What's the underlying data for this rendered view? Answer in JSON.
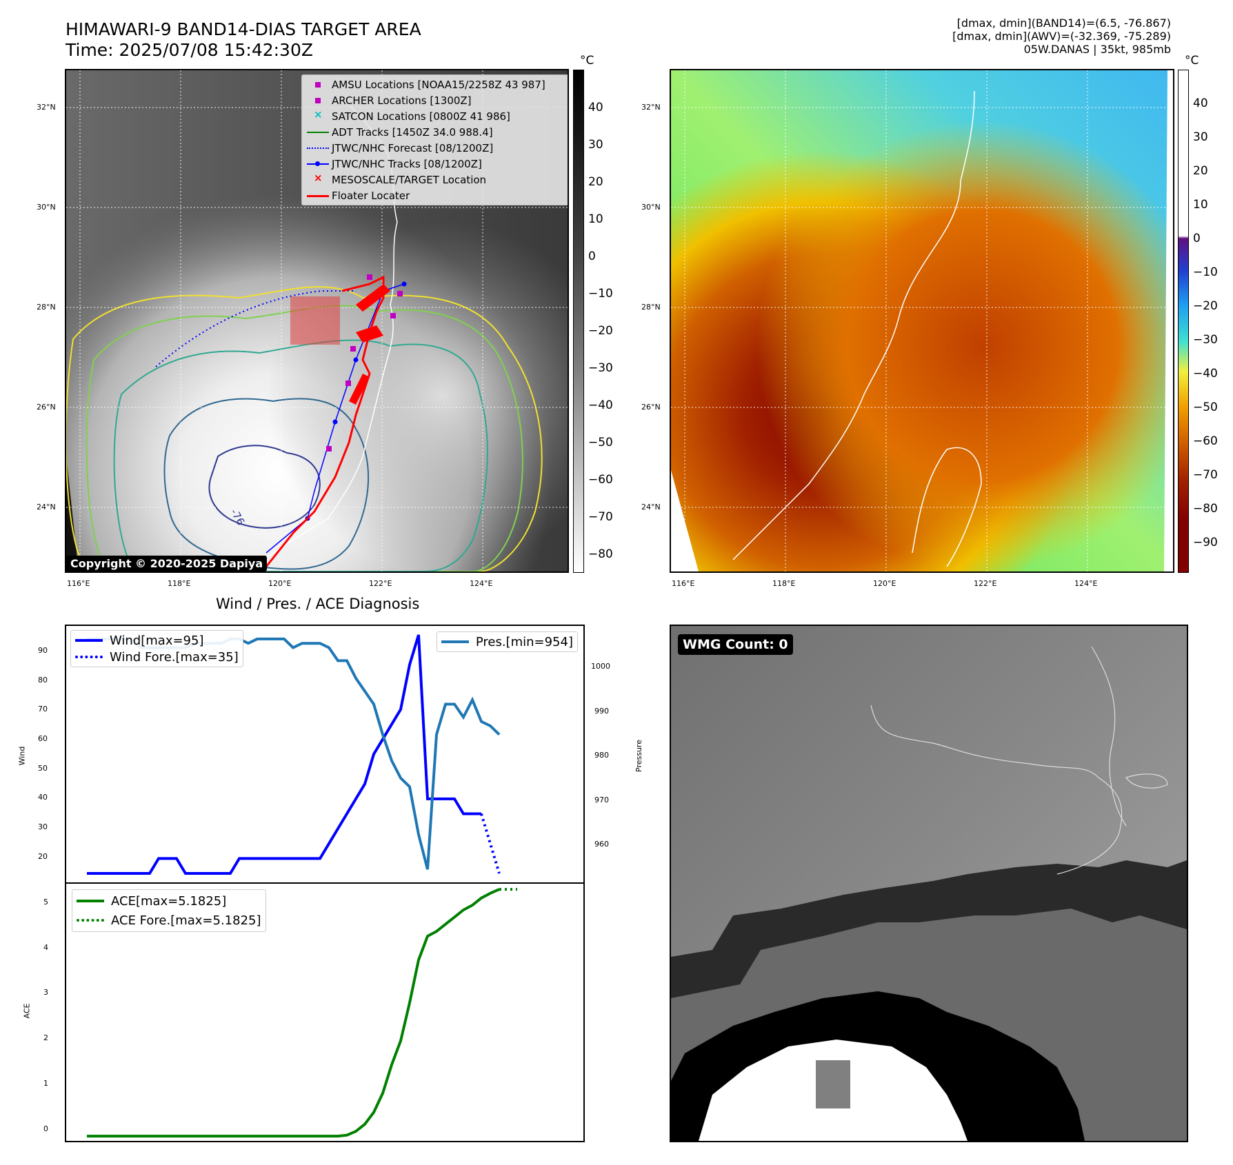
{
  "header": {
    "title_line1": "HIMAWARI-9 BAND14-DIAS TARGET AREA",
    "title_line2": "Time: 2025/07/08 15:42:30Z",
    "info_line1": "[dmax, dmin](BAND14)=(6.5, -76.867)",
    "info_line2": "[dmax, dmin](AWV)=(-32.369, -75.289)",
    "info_line3": "05W.DANAS | 35kt, 985mb"
  },
  "map": {
    "lat_labels": [
      "32°N",
      "30°N",
      "28°N",
      "26°N",
      "24°N"
    ],
    "lon_labels": [
      "116°E",
      "118°E",
      "120°E",
      "122°E",
      "124°E"
    ],
    "contour_label": "-76",
    "copyright": "Copyright © 2020-2025 Dapiya"
  },
  "colorbar_left": {
    "unit": "°C",
    "ticks": [
      "40",
      "30",
      "20",
      "10",
      "0",
      "−10",
      "−20",
      "−30",
      "−40",
      "−50",
      "−60",
      "−70",
      "−80"
    ]
  },
  "colorbar_right": {
    "unit": "°C",
    "ticks": [
      "40",
      "30",
      "20",
      "10",
      "0",
      "−10",
      "−20",
      "−30",
      "−40",
      "−50",
      "−60",
      "−70",
      "−80",
      "−90"
    ]
  },
  "legend": {
    "items": [
      {
        "label": "AMSU Locations [NOAA15/2258Z 43 987]",
        "symbol": "magenta-square",
        "color": "#c000c0"
      },
      {
        "label": "ARCHER Locations [1300Z]",
        "symbol": "magenta-square",
        "color": "#c000c0"
      },
      {
        "label": "SATCON Locations [0800Z 41 986]",
        "symbol": "cyan-x",
        "color": "#00c0c0"
      },
      {
        "label": "ADT Tracks [1450Z 34.0 988.4]",
        "symbol": "green-line",
        "color": "#008000"
      },
      {
        "label": "JTWC/NHC Forecast [08/1200Z]",
        "symbol": "blue-dotted",
        "color": "#0000ff"
      },
      {
        "label": "JTWC/NHC Tracks [08/1200Z]",
        "symbol": "blue-line-dot",
        "color": "#0000ff"
      },
      {
        "label": "MESOSCALE/TARGET Location",
        "symbol": "red-x",
        "color": "#ff0000"
      },
      {
        "label": "Floater Locater",
        "symbol": "red-line",
        "color": "#ff0000"
      }
    ]
  },
  "diagnosis": {
    "title": "Wind / Pres. / ACE Diagnosis",
    "wind_ylabel": "Wind",
    "pres_ylabel": "Pressure",
    "ace_ylabel": "ACE",
    "wind_legend": "Wind[max=95]",
    "wind_fore_legend": "Wind Fore.[max=35]",
    "pres_legend": "Pres.[min=954]",
    "ace_legend": "ACE[max=5.1825]",
    "ace_fore_legend": "ACE Fore.[max=5.1825]",
    "wind_ticks": [
      "90",
      "80",
      "70",
      "60",
      "50",
      "40",
      "30",
      "20"
    ],
    "pres_ticks": [
      "1000",
      "990",
      "980",
      "970",
      "960"
    ],
    "ace_ticks": [
      "5",
      "4",
      "3",
      "2",
      "1",
      "0"
    ]
  },
  "chart_data": [
    {
      "type": "line",
      "series": [
        {
          "name": "Wind[max=95]",
          "values": [
            15,
            15,
            15,
            15,
            15,
            15,
            15,
            15,
            20,
            20,
            20,
            15,
            15,
            15,
            15,
            15,
            15,
            20,
            20,
            20,
            20,
            20,
            20,
            20,
            20,
            20,
            20,
            25,
            30,
            35,
            40,
            45,
            55,
            60,
            65,
            70,
            85,
            95,
            40,
            40,
            40,
            40,
            35,
            35,
            35
          ]
        },
        {
          "name": "Wind Fore.[max=35]",
          "x_start": 44,
          "values": [
            35,
            25,
            15
          ]
        }
      ],
      "ylabel": "Wind",
      "ylim": [
        12,
        98
      ],
      "color_wind": "#0000ff"
    },
    {
      "type": "line",
      "series": [
        {
          "name": "Pres.[min=954]",
          "values": [
            1007,
            1007,
            1007,
            1007,
            1007,
            1007,
            1005,
            1005,
            1005,
            1005,
            1005,
            1005,
            1006,
            1006,
            1006,
            1006,
            1007,
            1007,
            1006,
            1007,
            1007,
            1007,
            1007,
            1005,
            1006,
            1006,
            1006,
            1005,
            1002,
            1002,
            998,
            995,
            992,
            985,
            979,
            975,
            973,
            962,
            954,
            985,
            992,
            992,
            989,
            993,
            988,
            987,
            985
          ]
        }
      ],
      "ylabel": "Pressure",
      "ylim": [
        951,
        1010
      ],
      "color": "#1f77b4"
    },
    {
      "type": "line",
      "series": [
        {
          "name": "ACE[max=5.1825]",
          "values": [
            0,
            0,
            0,
            0,
            0,
            0,
            0,
            0,
            0,
            0,
            0,
            0,
            0,
            0,
            0,
            0,
            0,
            0,
            0,
            0,
            0,
            0,
            0,
            0,
            0,
            0,
            0,
            0,
            0,
            0.02,
            0.1,
            0.25,
            0.5,
            0.9,
            1.5,
            2.0,
            2.8,
            3.7,
            4.2,
            4.3,
            4.45,
            4.6,
            4.75,
            4.85,
            5.0,
            5.1,
            5.1825
          ]
        },
        {
          "name": "ACE Fore.[max=5.1825]",
          "x_start": 46,
          "values": [
            5.1825,
            5.1825,
            5.1825
          ]
        }
      ],
      "ylabel": "ACE",
      "ylim": [
        -0.1,
        5.3
      ],
      "color": "#008000"
    }
  ],
  "wmg": {
    "label": "WMG Count: 0"
  }
}
